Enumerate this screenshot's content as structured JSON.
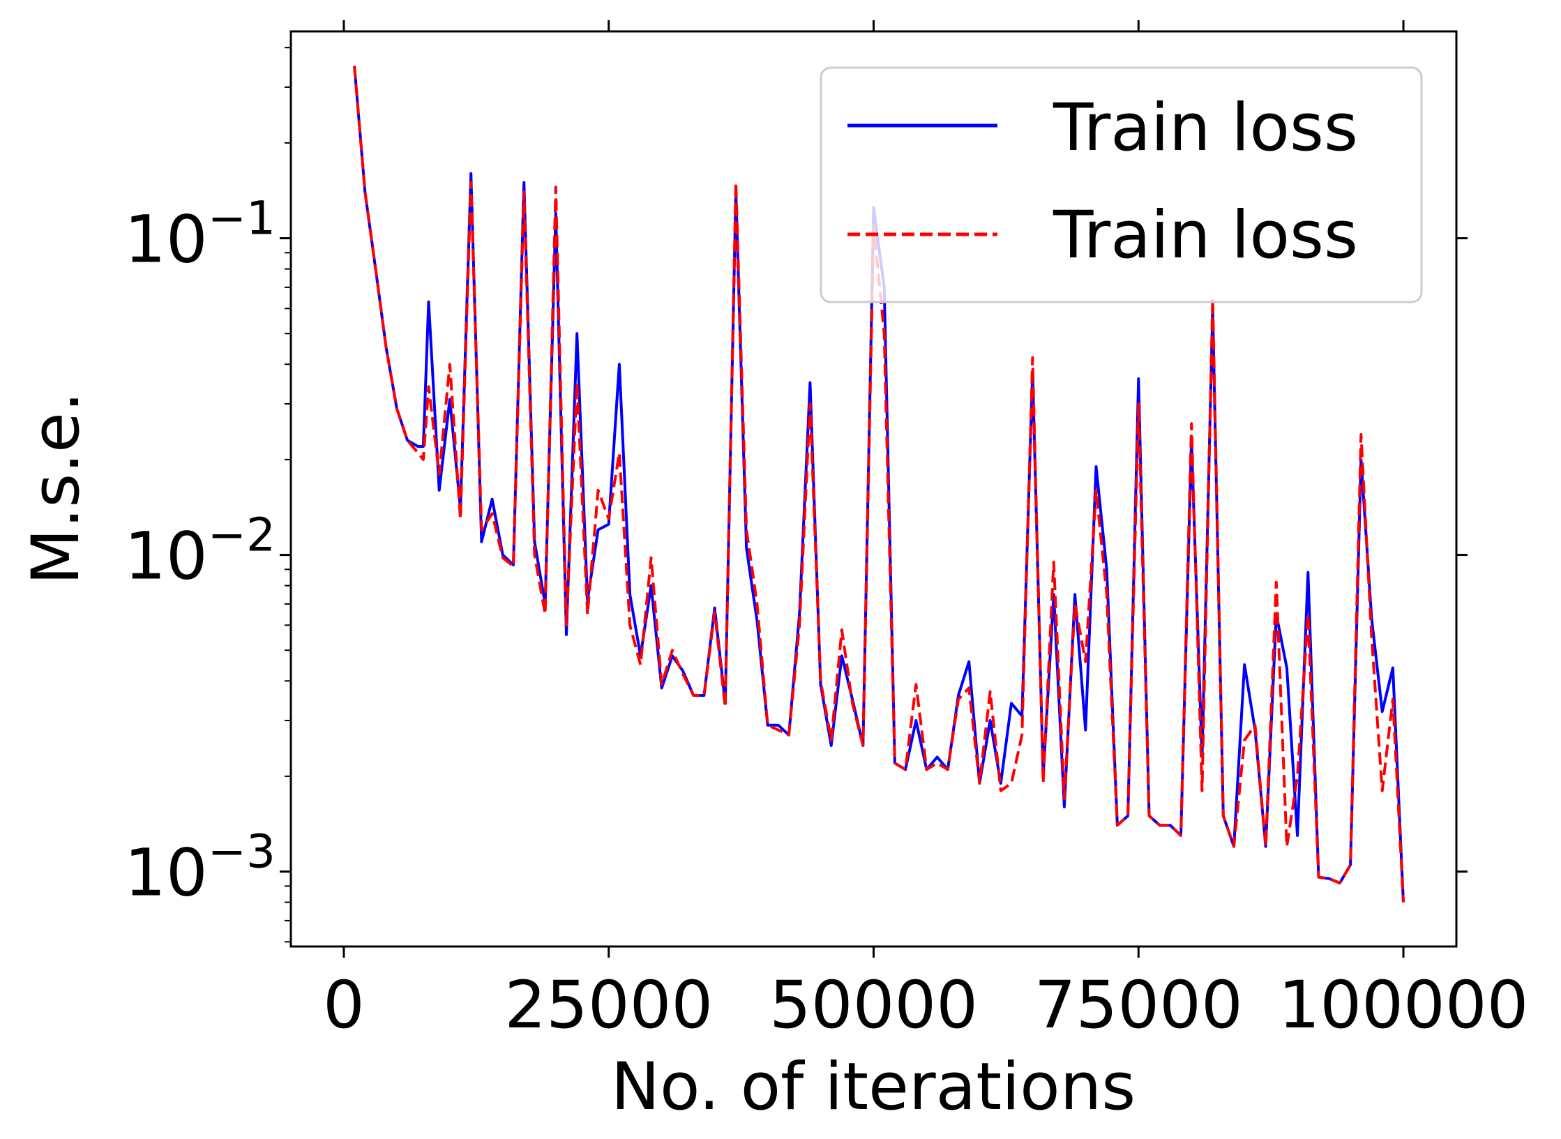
{
  "chart_data": {
    "type": "line",
    "xlabel": "No. of iterations",
    "ylabel": "M.s.e.",
    "yscale": "log",
    "xlim": [
      -5000,
      105000
    ],
    "ylim": [
      0.00058,
      0.45
    ],
    "xticks": [
      0,
      25000,
      50000,
      75000,
      100000
    ],
    "xtick_labels": [
      "0",
      "25000",
      "50000",
      "75000",
      "100000"
    ],
    "yticks": [
      0.001,
      0.01,
      0.1
    ],
    "ytick_labels": [
      {
        "base": "10",
        "exp": "−3"
      },
      {
        "base": "10",
        "exp": "−2"
      },
      {
        "base": "10",
        "exp": "−1"
      }
    ],
    "grid": false,
    "legend": {
      "position": "top-right"
    },
    "x": [
      1000,
      2000,
      3000,
      4000,
      5000,
      6000,
      7000,
      7500,
      8000,
      9000,
      10000,
      11000,
      12000,
      13000,
      14000,
      15000,
      16000,
      17000,
      18000,
      19000,
      20000,
      21000,
      22000,
      23000,
      24000,
      25000,
      26000,
      27000,
      28000,
      29000,
      30000,
      31000,
      32000,
      33000,
      34000,
      35000,
      36000,
      37000,
      38000,
      39000,
      40000,
      41000,
      42000,
      43000,
      44000,
      45000,
      46000,
      47000,
      48000,
      49000,
      50000,
      51000,
      52000,
      53000,
      54000,
      55000,
      56000,
      57000,
      58000,
      59000,
      60000,
      61000,
      62000,
      63000,
      64000,
      65000,
      66000,
      67000,
      68000,
      69000,
      70000,
      71000,
      72000,
      73000,
      74000,
      75000,
      76000,
      77000,
      78000,
      79000,
      80000,
      81000,
      82000,
      83000,
      84000,
      85000,
      86000,
      87000,
      88000,
      89000,
      90000,
      91000,
      92000,
      93000,
      94000,
      95000,
      96000,
      97000,
      98000,
      99000,
      100000
    ],
    "series": [
      {
        "name": "Train loss",
        "color": "#0000ff",
        "style": "solid",
        "values": [
          0.35,
          0.14,
          0.08,
          0.045,
          0.029,
          0.023,
          0.022,
          0.022,
          0.063,
          0.016,
          0.031,
          0.014,
          0.16,
          0.011,
          0.015,
          0.01,
          0.0093,
          0.15,
          0.011,
          0.007,
          0.12,
          0.0056,
          0.05,
          0.0072,
          0.012,
          0.0125,
          0.04,
          0.0075,
          0.0048,
          0.008,
          0.0038,
          0.0048,
          0.0043,
          0.0036,
          0.0036,
          0.0068,
          0.0034,
          0.14,
          0.0105,
          0.0062,
          0.0029,
          0.0029,
          0.0027,
          0.0065,
          0.035,
          0.0039,
          0.0025,
          0.0048,
          0.0035,
          0.0025,
          0.125,
          0.07,
          0.0022,
          0.0021,
          0.003,
          0.0021,
          0.0023,
          0.0021,
          0.0036,
          0.0046,
          0.0019,
          0.003,
          0.0019,
          0.0034,
          0.0031,
          0.038,
          0.002,
          0.0075,
          0.0016,
          0.0075,
          0.0028,
          0.019,
          0.009,
          0.0014,
          0.0015,
          0.036,
          0.0015,
          0.0014,
          0.0014,
          0.0013,
          0.023,
          0.0023,
          0.06,
          0.0015,
          0.0012,
          0.0045,
          0.0028,
          0.0012,
          0.0065,
          0.0044,
          0.0013,
          0.0088,
          0.00096,
          0.00095,
          0.00092,
          0.00105,
          0.02,
          0.0063,
          0.0032,
          0.0044,
          0.0008
        ]
      },
      {
        "name": "Train loss",
        "color": "#ff0000",
        "style": "dashed",
        "values": [
          0.35,
          0.14,
          0.08,
          0.045,
          0.029,
          0.023,
          0.021,
          0.02,
          0.034,
          0.018,
          0.04,
          0.013,
          0.15,
          0.012,
          0.0135,
          0.0098,
          0.0092,
          0.14,
          0.01,
          0.0065,
          0.145,
          0.006,
          0.035,
          0.0065,
          0.016,
          0.013,
          0.021,
          0.006,
          0.0045,
          0.0098,
          0.0039,
          0.005,
          0.0042,
          0.0036,
          0.0036,
          0.0066,
          0.0033,
          0.15,
          0.012,
          0.007,
          0.0029,
          0.0028,
          0.0027,
          0.006,
          0.03,
          0.004,
          0.0026,
          0.0058,
          0.0034,
          0.0025,
          0.11,
          0.05,
          0.0022,
          0.0021,
          0.0039,
          0.0021,
          0.0022,
          0.0021,
          0.0035,
          0.0038,
          0.0019,
          0.0037,
          0.0018,
          0.0019,
          0.0027,
          0.042,
          0.0019,
          0.0095,
          0.0017,
          0.007,
          0.0046,
          0.016,
          0.0075,
          0.0014,
          0.0015,
          0.03,
          0.0015,
          0.0014,
          0.0014,
          0.0013,
          0.026,
          0.0018,
          0.065,
          0.0015,
          0.0012,
          0.0026,
          0.0029,
          0.0012,
          0.0082,
          0.0012,
          0.002,
          0.0065,
          0.00096,
          0.00095,
          0.00092,
          0.00105,
          0.024,
          0.0055,
          0.0018,
          0.0035,
          0.0008
        ]
      }
    ]
  }
}
